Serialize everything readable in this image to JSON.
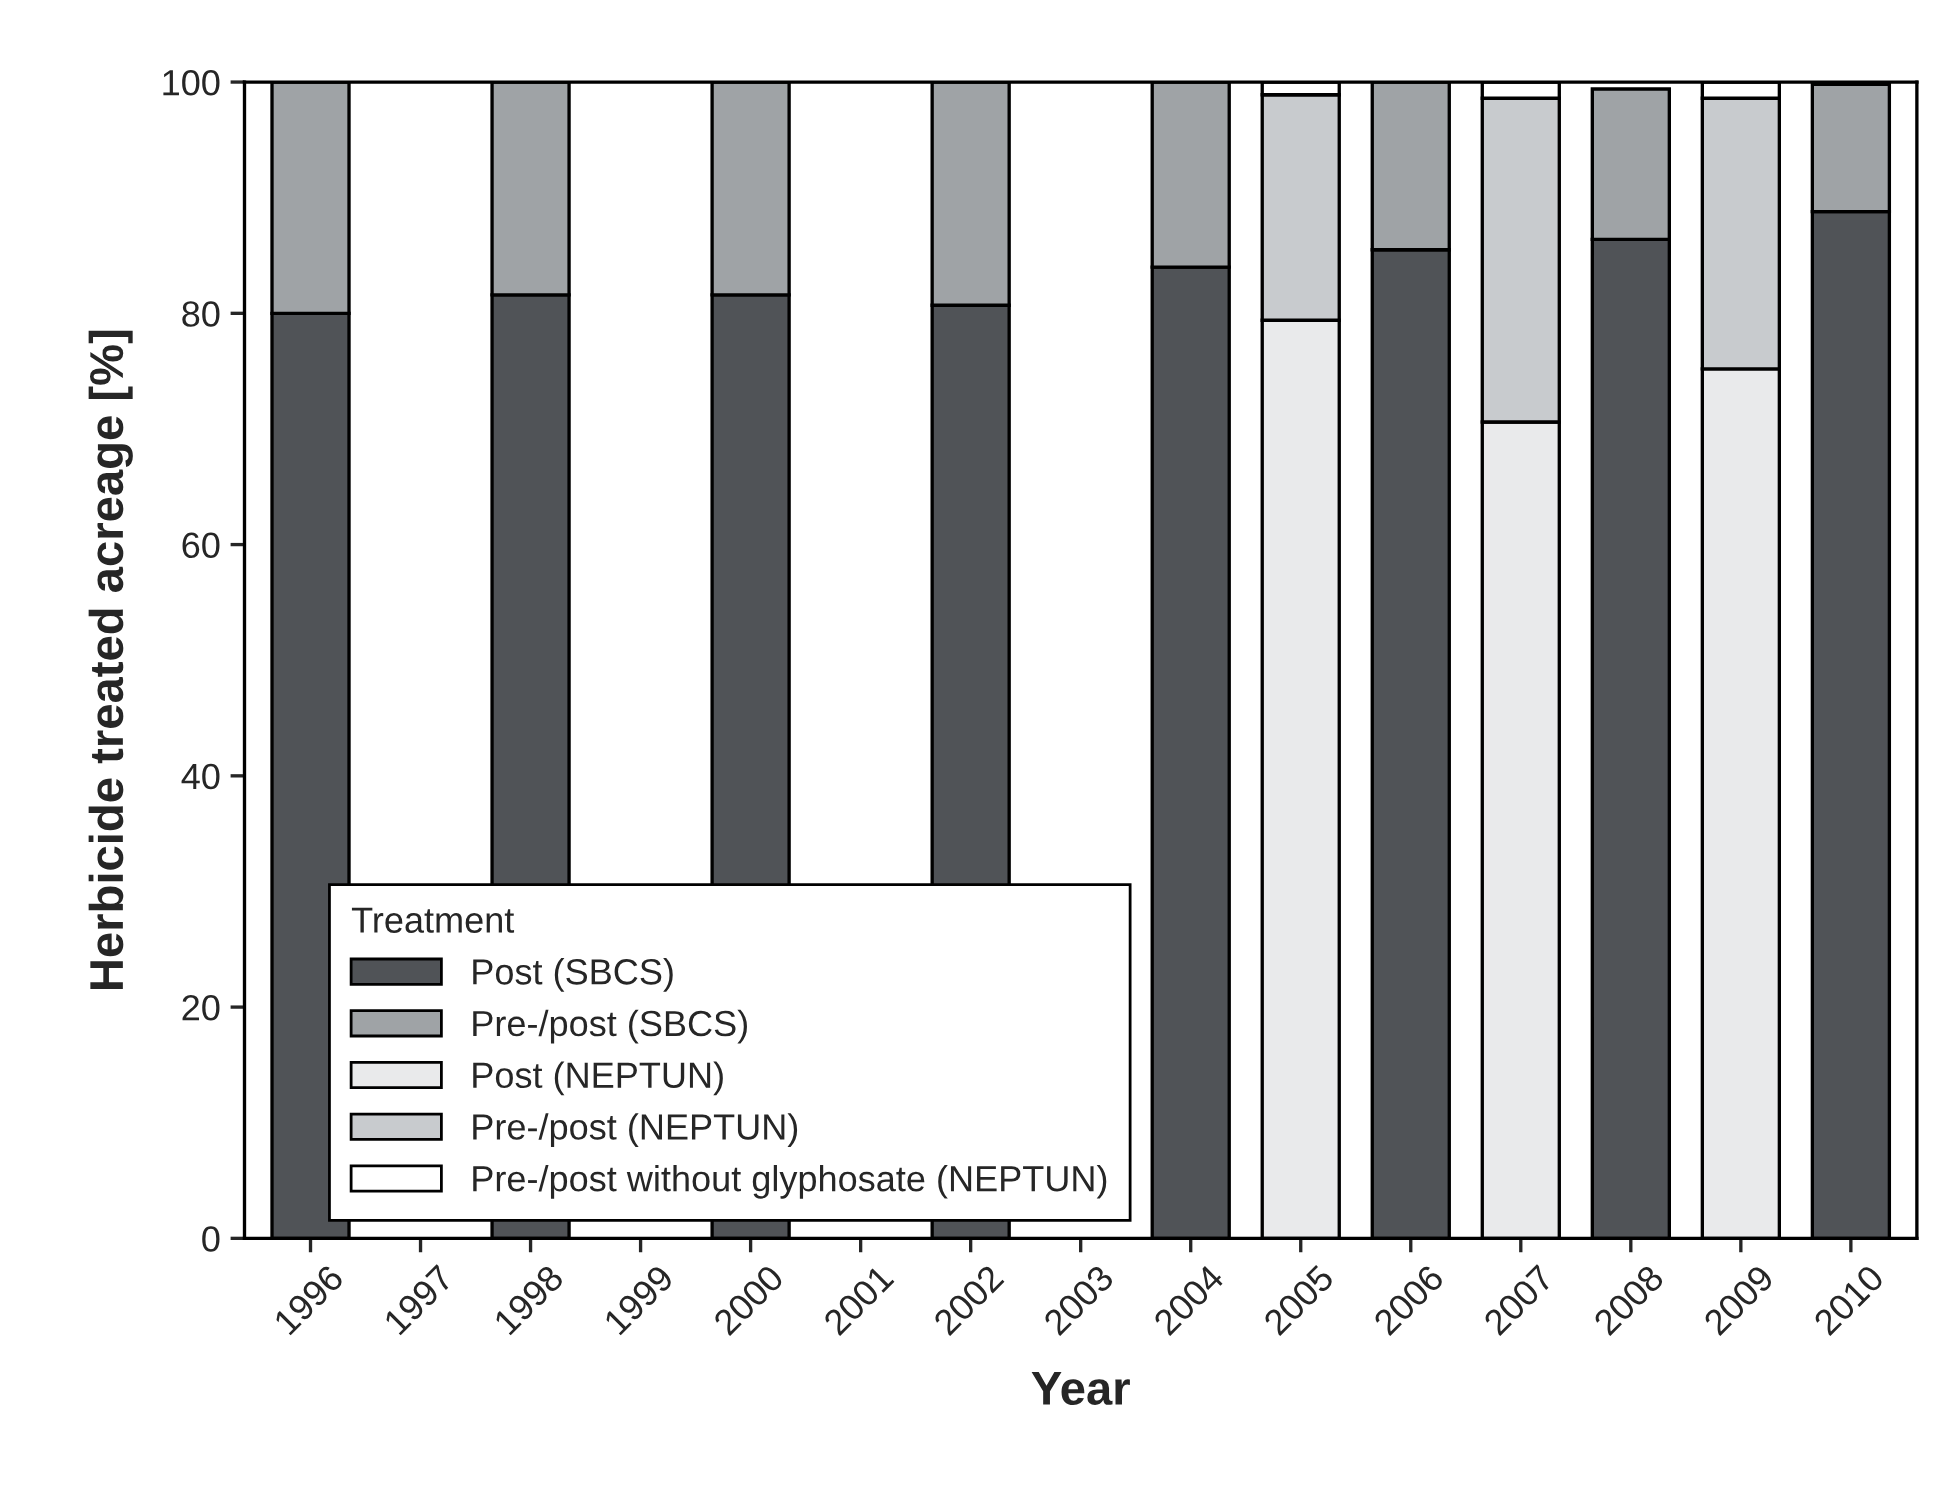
{
  "chart_data": {
    "type": "bar",
    "stacked": true,
    "xlabel": "Year",
    "ylabel": "Herbicide treated acreage [%]",
    "legend_title": "Treatment",
    "legend": "bottom left",
    "grid": false,
    "categories": [
      "1996",
      "1997",
      "1998",
      "1999",
      "2000",
      "2001",
      "2002",
      "2003",
      "2004",
      "2005",
      "2006",
      "2007",
      "2008",
      "2009",
      "2010"
    ],
    "ylim": [
      0,
      100
    ],
    "yticks": [
      0,
      20,
      40,
      60,
      80,
      100
    ],
    "series": [
      {
        "name": "Post (SBCS)",
        "color": "#505357",
        "values": [
          80,
          null,
          81.6,
          null,
          81.6,
          null,
          80.7,
          null,
          84.0,
          null,
          85.5,
          null,
          86.4,
          null,
          88.8
        ]
      },
      {
        "name": "Pre-/post (SBCS)",
        "color": "#9fa3a6",
        "values": [
          20,
          null,
          18.4,
          null,
          18.4,
          null,
          19.3,
          null,
          16.0,
          null,
          14.5,
          null,
          13.0,
          null,
          11.0
        ]
      },
      {
        "name": "Post (NEPTUN)",
        "color": "#e9eaeb",
        "values": [
          null,
          null,
          null,
          null,
          null,
          null,
          null,
          null,
          null,
          79.4,
          null,
          70.6,
          null,
          75.2,
          null
        ]
      },
      {
        "name": "Pre-/post (NEPTUN)",
        "color": "#c8cbce",
        "values": [
          null,
          null,
          null,
          null,
          null,
          null,
          null,
          null,
          null,
          19.5,
          null,
          28.0,
          null,
          23.4,
          null
        ]
      },
      {
        "name": "Pre-/post without glyphosate (NEPTUN)",
        "color": "#ffffff",
        "values": [
          null,
          null,
          null,
          null,
          null,
          null,
          null,
          null,
          null,
          1.1,
          null,
          1.4,
          null,
          1.4,
          null
        ]
      }
    ]
  }
}
